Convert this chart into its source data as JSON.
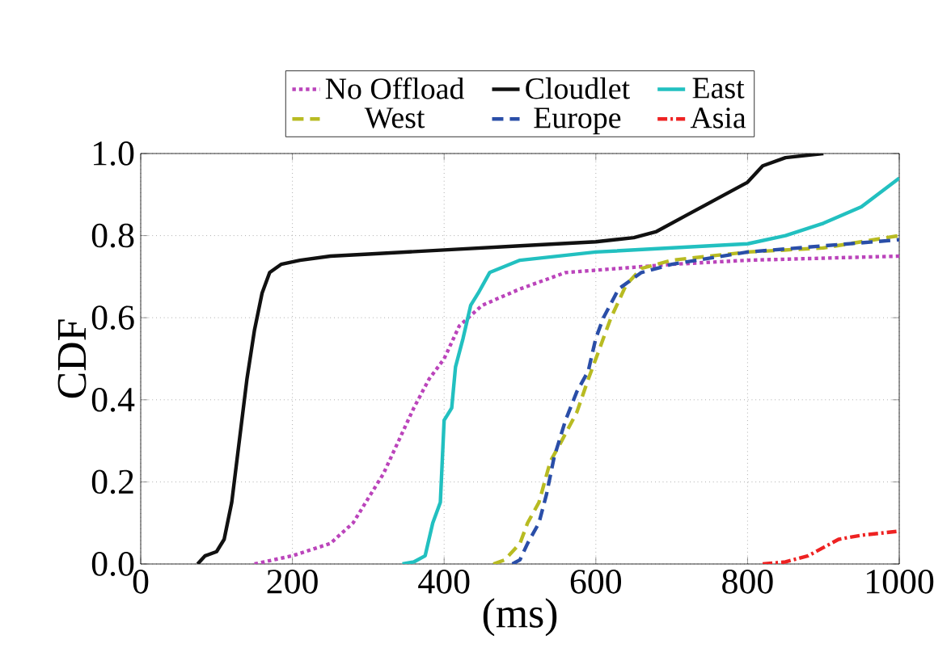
{
  "chart_data": {
    "type": "line",
    "xlabel": "(ms)",
    "ylabel": "CDF",
    "xlim": [
      0,
      1000
    ],
    "xticks": [
      0,
      200,
      400,
      600,
      800,
      1000
    ],
    "ylim": [
      0,
      1
    ],
    "yticks": [
      {
        "value": 0,
        "label": "0.0"
      },
      {
        "value": 0.2,
        "label": "0.2"
      },
      {
        "value": 0.4,
        "label": "0.4"
      },
      {
        "value": 0.6,
        "label": "0.6"
      },
      {
        "value": 0.8,
        "label": "0.8"
      },
      {
        "value": 1,
        "label": "1.0"
      }
    ],
    "grid": true,
    "legend": "top",
    "marker": "none",
    "series": [
      {
        "name": "No Offload",
        "color": "#bb44bb",
        "line_style": "dotted",
        "x": [
          150,
          200,
          250,
          280,
          300,
          320,
          340,
          360,
          380,
          400,
          420,
          450,
          500,
          560,
          700,
          800,
          1000
        ],
        "values": [
          0,
          0.02,
          0.05,
          0.1,
          0.16,
          0.22,
          0.3,
          0.38,
          0.45,
          0.5,
          0.58,
          0.63,
          0.67,
          0.71,
          0.73,
          0.74,
          0.75
        ]
      },
      {
        "name": "Cloudlet",
        "color": "#111111",
        "line_style": "solid",
        "x": [
          75,
          85,
          100,
          110,
          120,
          130,
          140,
          150,
          160,
          170,
          185,
          210,
          250,
          300,
          400,
          500,
          600,
          650,
          680,
          720,
          760,
          800,
          820,
          850,
          900
        ],
        "values": [
          0,
          0.02,
          0.03,
          0.06,
          0.15,
          0.3,
          0.45,
          0.57,
          0.66,
          0.71,
          0.73,
          0.74,
          0.75,
          0.755,
          0.765,
          0.775,
          0.785,
          0.795,
          0.81,
          0.85,
          0.89,
          0.93,
          0.97,
          0.99,
          1.0
        ]
      },
      {
        "name": "East",
        "color": "#22c0c0",
        "line_style": "solid",
        "x": [
          345,
          360,
          375,
          385,
          395,
          400,
          410,
          415,
          425,
          435,
          445,
          460,
          500,
          600,
          750,
          800,
          850,
          900,
          950,
          1000
        ],
        "values": [
          0,
          0.005,
          0.02,
          0.1,
          0.15,
          0.35,
          0.38,
          0.48,
          0.55,
          0.63,
          0.66,
          0.71,
          0.74,
          0.76,
          0.775,
          0.78,
          0.8,
          0.83,
          0.87,
          0.94
        ]
      },
      {
        "name": "West",
        "color": "#b8bb22",
        "line_style": "dashed",
        "x": [
          465,
          480,
          500,
          510,
          525,
          540,
          555,
          575,
          590,
          610,
          620,
          640,
          660,
          700,
          800,
          900,
          1000
        ],
        "values": [
          0,
          0.01,
          0.05,
          0.1,
          0.15,
          0.25,
          0.3,
          0.37,
          0.45,
          0.55,
          0.6,
          0.68,
          0.72,
          0.74,
          0.76,
          0.77,
          0.8
        ]
      },
      {
        "name": "Europe",
        "color": "#2a4ea8",
        "line_style": "dashed",
        "x": [
          490,
          500,
          510,
          525,
          535,
          545,
          560,
          575,
          590,
          600,
          610,
          630,
          660,
          700,
          800,
          900,
          1000
        ],
        "values": [
          0,
          0.01,
          0.05,
          0.1,
          0.17,
          0.26,
          0.35,
          0.42,
          0.47,
          0.55,
          0.6,
          0.67,
          0.71,
          0.73,
          0.76,
          0.775,
          0.79
        ]
      },
      {
        "name": "Asia",
        "color": "#ee2222",
        "line_style": "dashdot",
        "x": [
          820,
          850,
          880,
          900,
          920,
          950,
          1000
        ],
        "values": [
          0,
          0.005,
          0.02,
          0.04,
          0.06,
          0.07,
          0.08
        ]
      }
    ]
  }
}
